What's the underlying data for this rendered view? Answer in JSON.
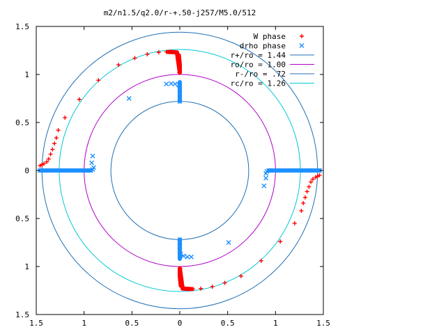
{
  "chart_data": {
    "type": "scatter",
    "title": "m2/n1.5/q2.0/r-+.50-j257/M5.0/512",
    "xlabel": "",
    "ylabel": "",
    "xlim": [
      -1.5,
      1.5
    ],
    "ylim": [
      -1.5,
      1.5
    ],
    "x_tick_values": [
      -1.5,
      -1,
      -0.5,
      0,
      0.5,
      1,
      1.5
    ],
    "x_tick_labels": [
      "1.5",
      "1",
      "0.5",
      "0",
      "0.5",
      "1",
      "1.5"
    ],
    "y_tick_values": [
      1.5,
      1,
      0.5,
      0,
      -0.5,
      -1,
      -1.5
    ],
    "y_tick_labels": [
      "1.5",
      "1",
      "0.5",
      "0",
      "0.5",
      "1",
      "1.5"
    ],
    "grid": false,
    "legend_position": "top-right",
    "series": [
      {
        "name": "W phase",
        "marker": "plus",
        "color": "#ff0000",
        "points": [
          [
            -1.46,
            0.05
          ],
          [
            -1.44,
            0.06
          ],
          [
            -1.42,
            0.07
          ],
          [
            -1.39,
            0.09
          ],
          [
            -1.37,
            0.12
          ],
          [
            -1.35,
            0.17
          ],
          [
            -1.33,
            0.22
          ],
          [
            -1.31,
            0.28
          ],
          [
            -1.29,
            0.34
          ],
          [
            -1.27,
            0.42
          ],
          [
            -1.2,
            0.55
          ],
          [
            -1.05,
            0.74
          ],
          [
            -0.85,
            0.94
          ],
          [
            -0.64,
            1.1
          ],
          [
            -0.47,
            1.17
          ],
          [
            -0.34,
            1.21
          ],
          [
            -0.22,
            1.23
          ],
          [
            -0.14,
            1.235
          ],
          [
            -0.09,
            1.235
          ],
          [
            -0.05,
            1.23
          ],
          [
            -0.03,
            1.22
          ],
          [
            -0.02,
            1.2
          ],
          [
            -0.015,
            1.17
          ],
          [
            -0.01,
            1.14
          ],
          [
            -0.01,
            1.1
          ],
          [
            -0.005,
            1.06
          ],
          [
            -0.005,
            1.02
          ],
          [
            1.46,
            -0.05
          ],
          [
            1.44,
            -0.06
          ],
          [
            1.42,
            -0.07
          ],
          [
            1.39,
            -0.09
          ],
          [
            1.37,
            -0.12
          ],
          [
            1.35,
            -0.17
          ],
          [
            1.33,
            -0.22
          ],
          [
            1.31,
            -0.28
          ],
          [
            1.29,
            -0.34
          ],
          [
            1.27,
            -0.42
          ],
          [
            1.2,
            -0.55
          ],
          [
            1.05,
            -0.74
          ],
          [
            0.85,
            -0.94
          ],
          [
            0.64,
            -1.1
          ],
          [
            0.47,
            -1.17
          ],
          [
            0.34,
            -1.21
          ],
          [
            0.22,
            -1.23
          ],
          [
            0.14,
            -1.235
          ],
          [
            0.09,
            -1.235
          ],
          [
            0.05,
            -1.23
          ],
          [
            0.03,
            -1.22
          ],
          [
            0.02,
            -1.2
          ],
          [
            0.015,
            -1.17
          ],
          [
            0.01,
            -1.14
          ],
          [
            0.01,
            -1.1
          ],
          [
            0.005,
            -1.06
          ],
          [
            0.005,
            -1.02
          ]
        ]
      },
      {
        "name": "drho phase",
        "marker": "cross",
        "color": "#1e90ff",
        "points": [
          [
            -1.46,
            0.0
          ],
          [
            -1.36,
            0.0
          ],
          [
            -1.26,
            0.0
          ],
          [
            -1.16,
            0.0
          ],
          [
            -1.06,
            0.0
          ],
          [
            -0.98,
            0.0
          ],
          [
            -0.93,
            0.0
          ],
          [
            -0.91,
            0.01
          ],
          [
            -0.9,
            0.03
          ],
          [
            -0.92,
            0.08
          ],
          [
            -0.91,
            0.15
          ],
          [
            -0.53,
            0.75
          ],
          [
            -0.14,
            0.9
          ],
          [
            -0.09,
            0.905
          ],
          [
            -0.05,
            0.9
          ],
          [
            -0.01,
            0.89
          ],
          [
            0.0,
            0.85
          ],
          [
            0.0,
            0.8
          ],
          [
            0.0,
            0.75
          ],
          [
            0.0,
            0.72
          ],
          [
            1.46,
            0.0
          ],
          [
            1.36,
            0.0
          ],
          [
            1.26,
            0.0
          ],
          [
            1.16,
            0.0
          ],
          [
            1.06,
            0.0
          ],
          [
            0.98,
            0.0
          ],
          [
            0.93,
            0.0
          ],
          [
            0.91,
            -0.01
          ],
          [
            0.9,
            -0.03
          ],
          [
            0.9,
            -0.08
          ],
          [
            0.88,
            -0.16
          ],
          [
            0.51,
            -0.75
          ],
          [
            0.12,
            -0.9
          ],
          [
            0.08,
            -0.9
          ],
          [
            0.04,
            -0.89
          ],
          [
            0.01,
            -0.87
          ],
          [
            0.0,
            -0.83
          ],
          [
            0.0,
            -0.79
          ],
          [
            0.0,
            -0.75
          ],
          [
            0.0,
            -0.72
          ]
        ]
      }
    ],
    "dense_segments": [
      {
        "series": "W phase",
        "color": "#ff0000",
        "points": [
          [
            -0.01,
            1.2
          ],
          [
            0.0,
            1.1
          ],
          [
            0.0,
            1.02
          ],
          [
            -0.03,
            1.23
          ],
          [
            -0.12,
            1.235
          ]
        ]
      },
      {
        "series": "W phase",
        "color": "#ff0000",
        "points": [
          [
            0.01,
            -1.2
          ],
          [
            0.0,
            -1.1
          ],
          [
            0.0,
            -1.02
          ],
          [
            0.03,
            -1.23
          ],
          [
            0.12,
            -1.235
          ]
        ]
      },
      {
        "series": "drho phase",
        "color": "#1e90ff",
        "points": [
          [
            -1.46,
            0.0
          ],
          [
            -0.93,
            0.0
          ]
        ]
      },
      {
        "series": "drho phase",
        "color": "#1e90ff",
        "points": [
          [
            0.93,
            0.0
          ],
          [
            1.46,
            0.0
          ]
        ]
      },
      {
        "series": "drho phase",
        "color": "#1e90ff",
        "points": [
          [
            0.0,
            0.72
          ],
          [
            0.0,
            0.92
          ]
        ]
      },
      {
        "series": "drho phase",
        "color": "#1e90ff",
        "points": [
          [
            0.0,
            -0.72
          ],
          [
            0.0,
            -0.92
          ]
        ]
      }
    ],
    "circles": [
      {
        "name": "r+/ro = 1.44",
        "radius": 1.44,
        "color": "#1f6fb4"
      },
      {
        "name": "ro/ro = 1.00",
        "radius": 1.0,
        "color": "#b000c8"
      },
      {
        "name": "r-/ro = .72",
        "radius": 0.72,
        "color": "#1f6fb4"
      },
      {
        "name": "rc/ro = 1.26",
        "radius": 1.26,
        "color": "#00c8d4"
      }
    ],
    "legend": [
      {
        "label": "W phase",
        "kind": "marker",
        "marker": "plus",
        "color": "#ff0000"
      },
      {
        "label": "drho phase",
        "kind": "marker",
        "marker": "cross",
        "color": "#1e90ff"
      },
      {
        "label": "r+/ro = 1.44",
        "kind": "line",
        "color": "#1f6fb4"
      },
      {
        "label": "ro/ro = 1.00",
        "kind": "line",
        "color": "#b000c8"
      },
      {
        "label": "r-/ro = .72",
        "kind": "line",
        "color": "#1f6fb4"
      },
      {
        "label": "rc/ro = 1.26",
        "kind": "line",
        "color": "#00c8d4"
      }
    ]
  }
}
